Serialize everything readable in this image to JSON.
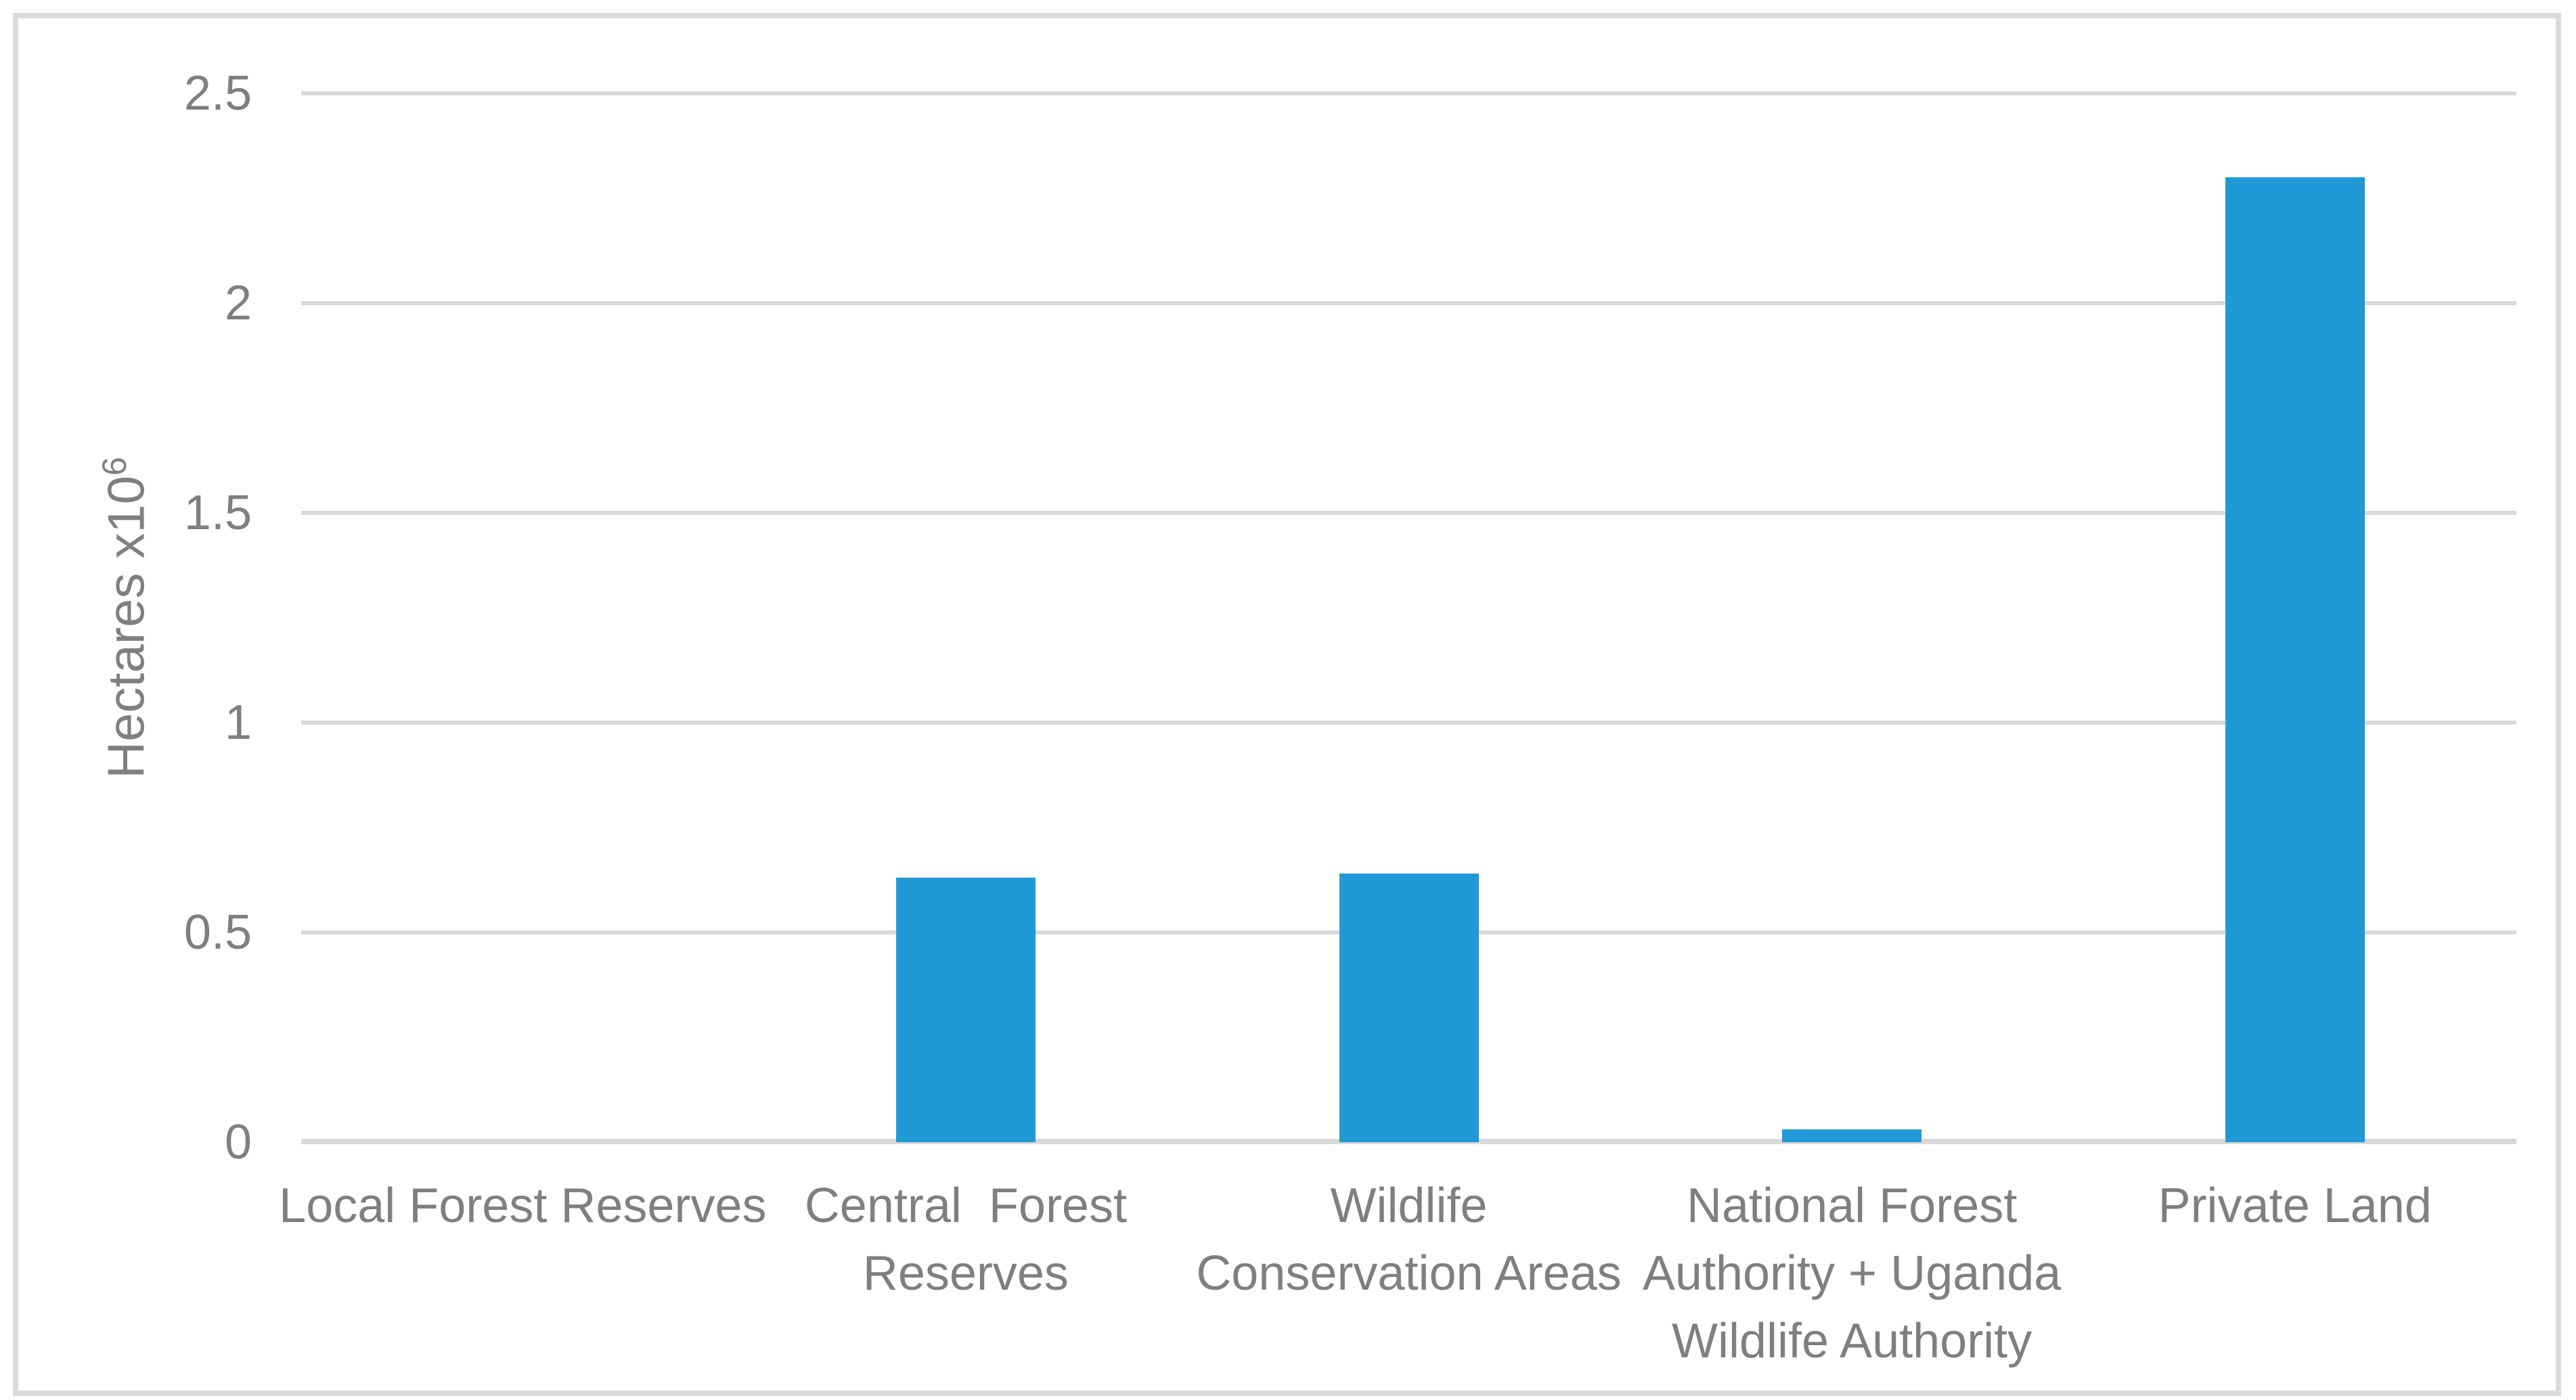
{
  "chart": {
    "ylabel_base": "Hectares x10",
    "ylabel_exp": "6"
  },
  "chart_data": {
    "type": "bar",
    "title": "",
    "xlabel": "",
    "ylabel": "Hectares x10⁶",
    "categories": [
      "Local Forest Reserves",
      "Central  Forest\nReserves",
      "Wildlife\nConservation Areas",
      "National Forest\nAuthority + Uganda\nWildlife Authority",
      "Private Land"
    ],
    "values": [
      0,
      0.63,
      0.64,
      0.03,
      2.3
    ],
    "ylim": [
      0,
      2.5
    ],
    "yticks": [
      0,
      0.5,
      1,
      1.5,
      2,
      2.5
    ],
    "ytick_labels": [
      "0",
      "0.5",
      "1",
      "1.5",
      "2",
      "2.5"
    ],
    "grid": "horizontal",
    "legend": "none",
    "bar_color": "#2199D6",
    "gridline_color": "#D9D9D9",
    "text_color": "#7F7F7F",
    "frame_color": "#DBDBDB"
  }
}
